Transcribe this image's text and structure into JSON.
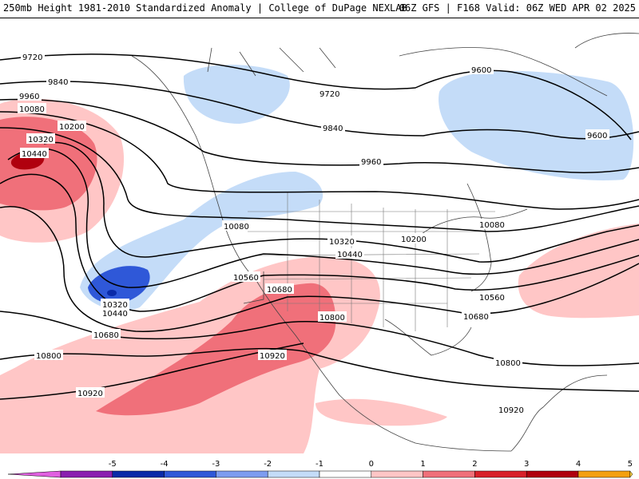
{
  "header": {
    "title_left": "250mb Height 1981-2010 Standardized Anomaly | College of DuPage NEXLAB",
    "title_right": "06Z GFS | F168 Valid: 06Z WED APR 02 2025"
  },
  "contour_labels": {
    "c9600": "9600",
    "c9720": "9720",
    "c9840": "9840",
    "c9960": "9960",
    "c10080": "10080",
    "c10200": "10200",
    "c10320": "10320",
    "c10440": "10440",
    "c10560": "10560",
    "c10680": "10680",
    "c10800": "10800",
    "c10920": "10920"
  },
  "colorbar": {
    "ticks": [
      "-5",
      "-4",
      "-3",
      "-2",
      "-1",
      "0",
      "1",
      "2",
      "3",
      "4",
      "5"
    ],
    "colors": [
      "#e060e0",
      "#8a1fb0",
      "#0a2aa8",
      "#2f58d8",
      "#7d9cf0",
      "#c4dcf8",
      "#ffffff",
      "#ffc6c6",
      "#f0707a",
      "#d8202a",
      "#b0000e",
      "#f4a010",
      "#f8d040"
    ]
  }
}
